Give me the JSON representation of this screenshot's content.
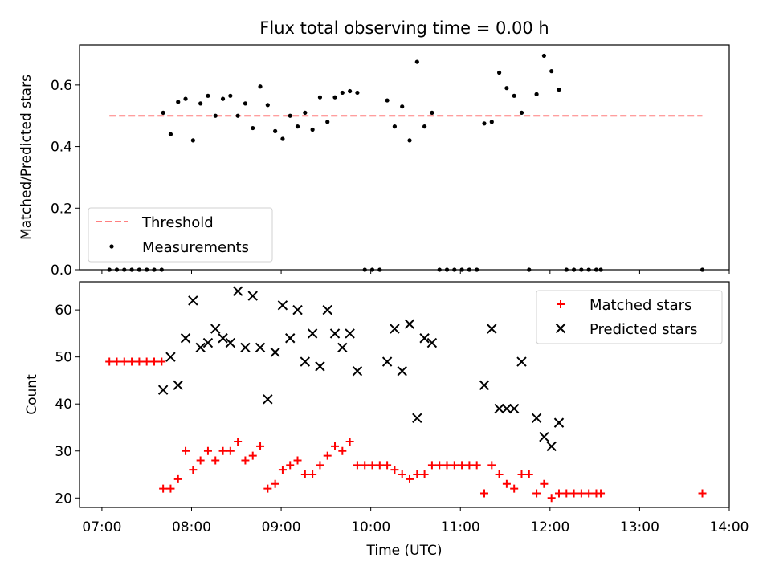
{
  "chart_data": [
    {
      "type": "scatter",
      "title": "Flux total observing time = 0.00 h",
      "xlabel": "",
      "ylabel": "Matched/Predicted stars",
      "xlim": [
        "06:45",
        "14:00"
      ],
      "ylim": [
        0,
        0.73
      ],
      "yticks": [
        0.0,
        0.2,
        0.4,
        0.6
      ],
      "ytick_labels": [
        "0.0",
        "0.2",
        "0.4",
        "0.6"
      ],
      "legend": {
        "placement": "lower-left"
      },
      "series": [
        {
          "name": "Threshold",
          "kind": "dashed-line",
          "color": "#ff7f7f",
          "points": [
            [
              "07:05",
              0.5
            ],
            [
              "13:42",
              0.5
            ]
          ]
        },
        {
          "name": "Measurements",
          "kind": "dots",
          "color": "#000000",
          "points": [
            [
              "07:05",
              0
            ],
            [
              "07:10",
              0
            ],
            [
              "07:15",
              0
            ],
            [
              "07:20",
              0
            ],
            [
              "07:25",
              0
            ],
            [
              "07:30",
              0
            ],
            [
              "07:35",
              0
            ],
            [
              "07:40",
              0
            ],
            [
              "07:41",
              0.51
            ],
            [
              "07:46",
              0.44
            ],
            [
              "07:51",
              0.545
            ],
            [
              "07:56",
              0.555
            ],
            [
              "08:01",
              0.42
            ],
            [
              "08:06",
              0.54
            ],
            [
              "08:11",
              0.565
            ],
            [
              "08:16",
              0.5
            ],
            [
              "08:21",
              0.555
            ],
            [
              "08:26",
              0.565
            ],
            [
              "08:31",
              0.5
            ],
            [
              "08:36",
              0.54
            ],
            [
              "08:41",
              0.46
            ],
            [
              "08:46",
              0.595
            ],
            [
              "08:51",
              0.535
            ],
            [
              "08:56",
              0.45
            ],
            [
              "09:01",
              0.425
            ],
            [
              "09:06",
              0.5
            ],
            [
              "09:11",
              0.465
            ],
            [
              "09:16",
              0.51
            ],
            [
              "09:21",
              0.455
            ],
            [
              "09:26",
              0.56
            ],
            [
              "09:31",
              0.48
            ],
            [
              "09:36",
              0.56
            ],
            [
              "09:41",
              0.575
            ],
            [
              "09:46",
              0.58
            ],
            [
              "09:51",
              0.575
            ],
            [
              "09:56",
              0
            ],
            [
              "10:01",
              0
            ],
            [
              "10:06",
              0
            ],
            [
              "10:11",
              0.55
            ],
            [
              "10:16",
              0.465
            ],
            [
              "10:21",
              0.53
            ],
            [
              "10:26",
              0.42
            ],
            [
              "10:31",
              0.675
            ],
            [
              "10:36",
              0.465
            ],
            [
              "10:41",
              0.51
            ],
            [
              "10:46",
              0
            ],
            [
              "10:51",
              0
            ],
            [
              "10:56",
              0
            ],
            [
              "11:01",
              0
            ],
            [
              "11:06",
              0
            ],
            [
              "11:11",
              0
            ],
            [
              "11:16",
              0.475
            ],
            [
              "11:21",
              0.48
            ],
            [
              "11:26",
              0.64
            ],
            [
              "11:31",
              0.59
            ],
            [
              "11:36",
              0.565
            ],
            [
              "11:41",
              0.51
            ],
            [
              "11:46",
              0
            ],
            [
              "11:51",
              0.57
            ],
            [
              "11:56",
              0.695
            ],
            [
              "12:01",
              0.645
            ],
            [
              "12:06",
              0.585
            ],
            [
              "12:11",
              0
            ],
            [
              "12:16",
              0
            ],
            [
              "12:21",
              0
            ],
            [
              "12:26",
              0
            ],
            [
              "12:31",
              0
            ],
            [
              "12:34",
              0
            ],
            [
              "13:42",
              0
            ]
          ]
        }
      ]
    },
    {
      "type": "scatter",
      "title": "",
      "xlabel": "Time (UTC)",
      "ylabel": "Count",
      "xlim": [
        "06:45",
        "14:00"
      ],
      "ylim": [
        18,
        66
      ],
      "xticks": [
        "07:00",
        "08:00",
        "09:00",
        "10:00",
        "11:00",
        "12:00",
        "13:00",
        "14:00"
      ],
      "yticks": [
        20,
        30,
        40,
        50,
        60
      ],
      "ytick_labels": [
        "20",
        "30",
        "40",
        "50",
        "60"
      ],
      "legend": {
        "placement": "upper-right"
      },
      "series": [
        {
          "name": "Matched stars",
          "kind": "plus",
          "color": "#ff0000",
          "points": [
            [
              "07:05",
              49
            ],
            [
              "07:10",
              49
            ],
            [
              "07:15",
              49
            ],
            [
              "07:20",
              49
            ],
            [
              "07:25",
              49
            ],
            [
              "07:30",
              49
            ],
            [
              "07:35",
              49
            ],
            [
              "07:40",
              49
            ],
            [
              "07:41",
              22
            ],
            [
              "07:46",
              22
            ],
            [
              "07:51",
              24
            ],
            [
              "07:56",
              30
            ],
            [
              "08:01",
              26
            ],
            [
              "08:06",
              28
            ],
            [
              "08:11",
              30
            ],
            [
              "08:16",
              28
            ],
            [
              "08:21",
              30
            ],
            [
              "08:26",
              30
            ],
            [
              "08:31",
              32
            ],
            [
              "08:36",
              28
            ],
            [
              "08:41",
              29
            ],
            [
              "08:46",
              31
            ],
            [
              "08:51",
              22
            ],
            [
              "08:56",
              23
            ],
            [
              "09:01",
              26
            ],
            [
              "09:06",
              27
            ],
            [
              "09:11",
              28
            ],
            [
              "09:16",
              25
            ],
            [
              "09:21",
              25
            ],
            [
              "09:26",
              27
            ],
            [
              "09:31",
              29
            ],
            [
              "09:36",
              31
            ],
            [
              "09:41",
              30
            ],
            [
              "09:46",
              32
            ],
            [
              "09:51",
              27
            ],
            [
              "09:56",
              27
            ],
            [
              "10:01",
              27
            ],
            [
              "10:06",
              27
            ],
            [
              "10:11",
              27
            ],
            [
              "10:16",
              26
            ],
            [
              "10:21",
              25
            ],
            [
              "10:26",
              24
            ],
            [
              "10:31",
              25
            ],
            [
              "10:36",
              25
            ],
            [
              "10:41",
              27
            ],
            [
              "10:46",
              27
            ],
            [
              "10:51",
              27
            ],
            [
              "10:56",
              27
            ],
            [
              "11:01",
              27
            ],
            [
              "11:06",
              27
            ],
            [
              "11:11",
              27
            ],
            [
              "11:16",
              21
            ],
            [
              "11:21",
              27
            ],
            [
              "11:26",
              25
            ],
            [
              "11:31",
              23
            ],
            [
              "11:36",
              22
            ],
            [
              "11:41",
              25
            ],
            [
              "11:46",
              25
            ],
            [
              "11:51",
              21
            ],
            [
              "11:56",
              23
            ],
            [
              "12:01",
              20
            ],
            [
              "12:06",
              21
            ],
            [
              "12:11",
              21
            ],
            [
              "12:16",
              21
            ],
            [
              "12:21",
              21
            ],
            [
              "12:26",
              21
            ],
            [
              "12:31",
              21
            ],
            [
              "12:34",
              21
            ],
            [
              "13:42",
              21
            ]
          ]
        },
        {
          "name": "Predicted stars",
          "kind": "x",
          "color": "#000000",
          "points": [
            [
              "07:41",
              43
            ],
            [
              "07:46",
              50
            ],
            [
              "07:51",
              44
            ],
            [
              "07:56",
              54
            ],
            [
              "08:01",
              62
            ],
            [
              "08:06",
              52
            ],
            [
              "08:11",
              53
            ],
            [
              "08:16",
              56
            ],
            [
              "08:21",
              54
            ],
            [
              "08:26",
              53
            ],
            [
              "08:31",
              64
            ],
            [
              "08:36",
              52
            ],
            [
              "08:41",
              63
            ],
            [
              "08:46",
              52
            ],
            [
              "08:51",
              41
            ],
            [
              "08:56",
              51
            ],
            [
              "09:01",
              61
            ],
            [
              "09:06",
              54
            ],
            [
              "09:11",
              60
            ],
            [
              "09:16",
              49
            ],
            [
              "09:21",
              55
            ],
            [
              "09:26",
              48
            ],
            [
              "09:31",
              60
            ],
            [
              "09:36",
              55
            ],
            [
              "09:41",
              52
            ],
            [
              "09:46",
              55
            ],
            [
              "09:51",
              47
            ],
            [
              "10:11",
              49
            ],
            [
              "10:16",
              56
            ],
            [
              "10:21",
              47
            ],
            [
              "10:26",
              57
            ],
            [
              "10:31",
              37
            ],
            [
              "10:36",
              54
            ],
            [
              "10:41",
              53
            ],
            [
              "11:16",
              44
            ],
            [
              "11:21",
              56
            ],
            [
              "11:26",
              39
            ],
            [
              "11:31",
              39
            ],
            [
              "11:36",
              39
            ],
            [
              "11:41",
              49
            ],
            [
              "11:51",
              37
            ],
            [
              "11:56",
              33
            ],
            [
              "12:01",
              31
            ],
            [
              "12:06",
              36
            ]
          ]
        }
      ]
    }
  ]
}
